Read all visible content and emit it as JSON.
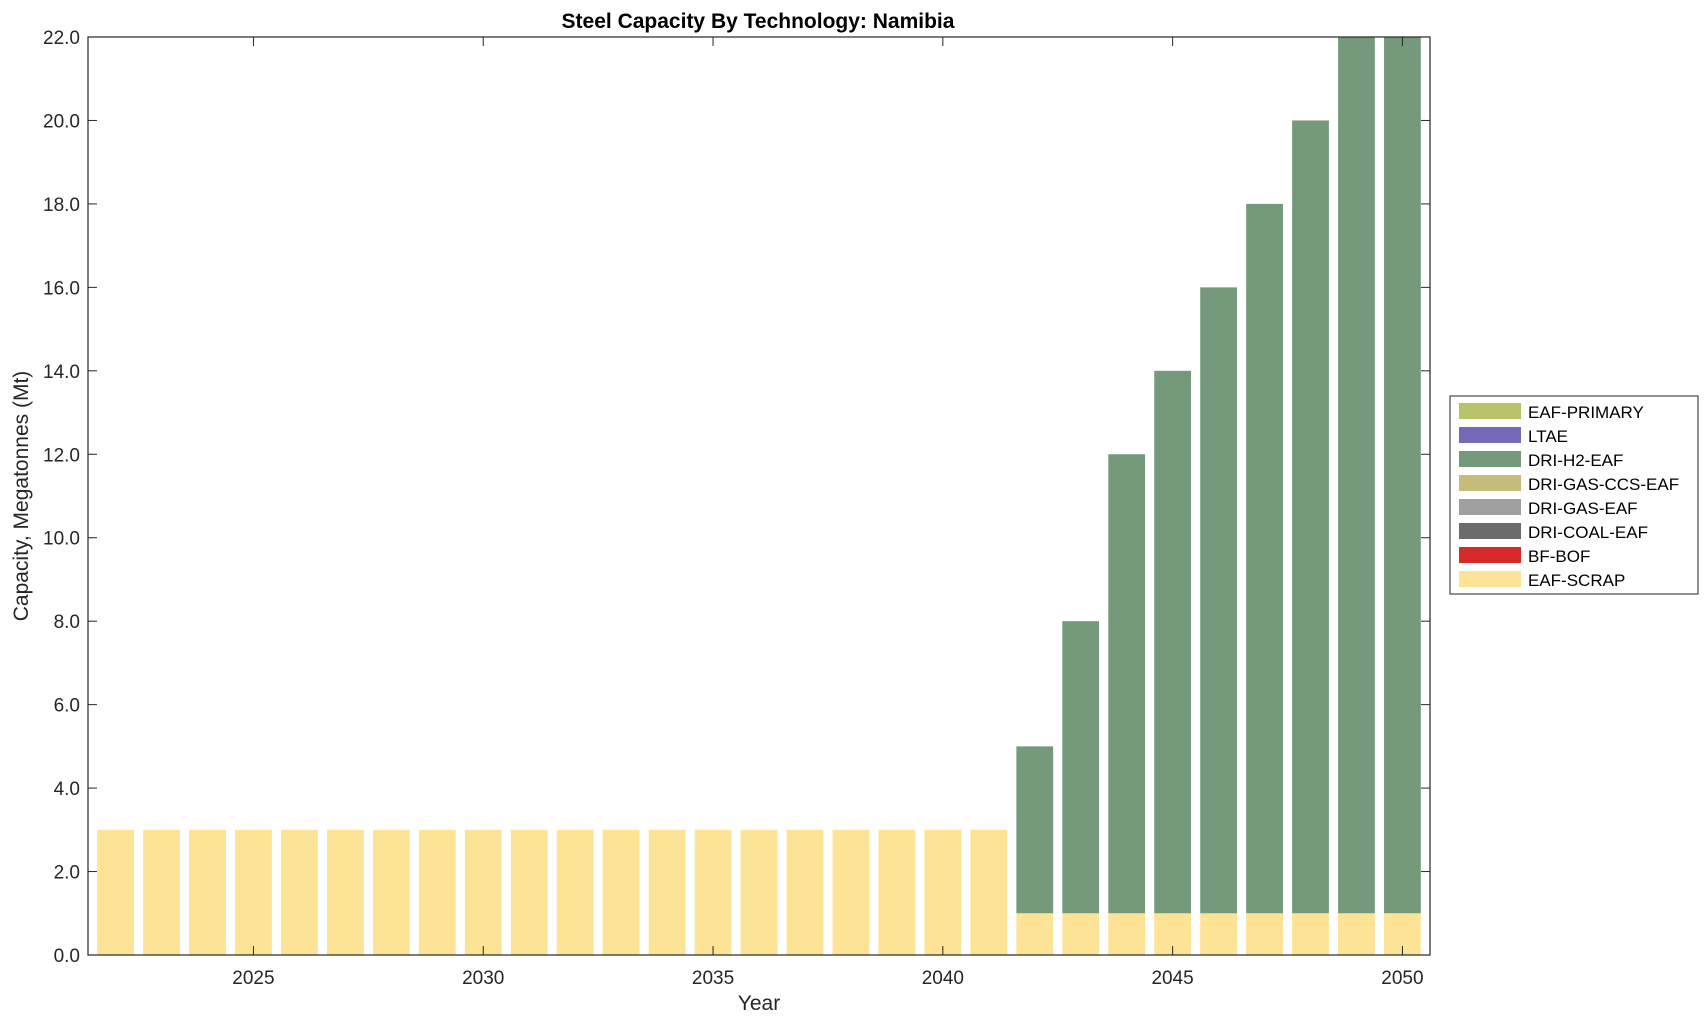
{
  "chart_data": {
    "type": "bar",
    "stacked": true,
    "title": "Steel Capacity By Technology: Namibia",
    "xlabel": "Year",
    "ylabel": "Capacity, Megatonnes (Mt)",
    "xlim": [
      2021.4,
      2050.6
    ],
    "ylim": [
      0,
      22
    ],
    "xticks": [
      2025,
      2030,
      2035,
      2040,
      2045,
      2050
    ],
    "xtick_labels": [
      "2025",
      "2030",
      "2035",
      "2040",
      "2045",
      "2050"
    ],
    "yticks": [
      0,
      2,
      4,
      6,
      8,
      10,
      12,
      14,
      16,
      18,
      20,
      22
    ],
    "ytick_labels": [
      "0.0",
      "2.0",
      "4.0",
      "6.0",
      "8.0",
      "10.0",
      "12.0",
      "14.0",
      "16.0",
      "18.0",
      "20.0",
      "22.0"
    ],
    "grid": false,
    "legend_position": "outside-right",
    "categories": [
      2022,
      2023,
      2024,
      2025,
      2026,
      2027,
      2028,
      2029,
      2030,
      2031,
      2032,
      2033,
      2034,
      2035,
      2036,
      2037,
      2038,
      2039,
      2040,
      2041,
      2042,
      2043,
      2044,
      2045,
      2046,
      2047,
      2048,
      2049,
      2050
    ],
    "series": [
      {
        "name": "EAF-SCRAP",
        "color": "#fde396",
        "values": [
          3,
          3,
          3,
          3,
          3,
          3,
          3,
          3,
          3,
          3,
          3,
          3,
          3,
          3,
          3,
          3,
          3,
          3,
          3,
          3,
          1,
          1,
          1,
          1,
          1,
          1,
          1,
          1,
          1
        ]
      },
      {
        "name": "BF-BOF",
        "color": "#d62a28",
        "values": [
          0,
          0,
          0,
          0,
          0,
          0,
          0,
          0,
          0,
          0,
          0,
          0,
          0,
          0,
          0,
          0,
          0,
          0,
          0,
          0,
          0,
          0,
          0,
          0,
          0,
          0,
          0,
          0,
          0
        ]
      },
      {
        "name": "DRI-COAL-EAF",
        "color": "#6b6b6b",
        "values": [
          0,
          0,
          0,
          0,
          0,
          0,
          0,
          0,
          0,
          0,
          0,
          0,
          0,
          0,
          0,
          0,
          0,
          0,
          0,
          0,
          0,
          0,
          0,
          0,
          0,
          0,
          0,
          0,
          0
        ]
      },
      {
        "name": "DRI-GAS-EAF",
        "color": "#a0a0a0",
        "values": [
          0,
          0,
          0,
          0,
          0,
          0,
          0,
          0,
          0,
          0,
          0,
          0,
          0,
          0,
          0,
          0,
          0,
          0,
          0,
          0,
          0,
          0,
          0,
          0,
          0,
          0,
          0,
          0,
          0
        ]
      },
      {
        "name": "DRI-GAS-CCS-EAF",
        "color": "#c5bc7a",
        "values": [
          0,
          0,
          0,
          0,
          0,
          0,
          0,
          0,
          0,
          0,
          0,
          0,
          0,
          0,
          0,
          0,
          0,
          0,
          0,
          0,
          0,
          0,
          0,
          0,
          0,
          0,
          0,
          0,
          0
        ]
      },
      {
        "name": "DRI-H2-EAF",
        "color": "#75997b",
        "values": [
          0,
          0,
          0,
          0,
          0,
          0,
          0,
          0,
          0,
          0,
          0,
          0,
          0,
          0,
          0,
          0,
          0,
          0,
          0,
          0,
          4,
          7,
          11,
          13,
          15,
          17,
          19,
          21,
          21
        ]
      },
      {
        "name": "LTAE",
        "color": "#7669ba",
        "values": [
          0,
          0,
          0,
          0,
          0,
          0,
          0,
          0,
          0,
          0,
          0,
          0,
          0,
          0,
          0,
          0,
          0,
          0,
          0,
          0,
          0,
          0,
          0,
          0,
          0,
          0,
          0,
          0,
          0
        ]
      },
      {
        "name": "EAF-PRIMARY",
        "color": "#b9c26a",
        "values": [
          0,
          0,
          0,
          0,
          0,
          0,
          0,
          0,
          0,
          0,
          0,
          0,
          0,
          0,
          0,
          0,
          0,
          0,
          0,
          0,
          0,
          0,
          0,
          0,
          0,
          0,
          0,
          0,
          0
        ]
      }
    ],
    "legend_order": [
      "EAF-PRIMARY",
      "LTAE",
      "DRI-H2-EAF",
      "DRI-GAS-CCS-EAF",
      "DRI-GAS-EAF",
      "DRI-COAL-EAF",
      "BF-BOF",
      "EAF-SCRAP"
    ]
  }
}
